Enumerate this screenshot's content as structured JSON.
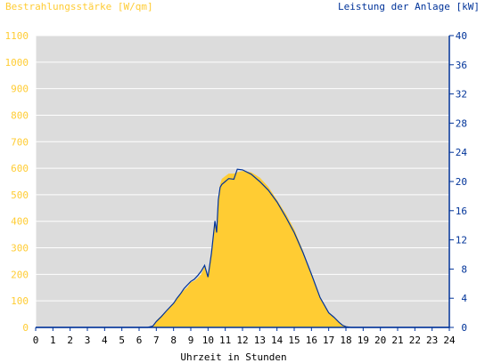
{
  "chart_data": {
    "type": "area",
    "title_left": "Bestrahlungsstärke [W/qm]",
    "title_right": "Leistung der Anlage [kW]",
    "xlabel": "Uhrzeit in Stunden",
    "x_ticks": [
      "0",
      "1",
      "2",
      "3",
      "4",
      "5",
      "6",
      "7",
      "8",
      "9",
      "10",
      "11",
      "12",
      "13",
      "14",
      "15",
      "16",
      "17",
      "18",
      "19",
      "20",
      "21",
      "22",
      "23",
      "24"
    ],
    "xlim": [
      0,
      24
    ],
    "y_left": {
      "ylim": [
        0,
        1100
      ],
      "ticks": [
        "0",
        "100",
        "200",
        "300",
        "400",
        "500",
        "600",
        "700",
        "800",
        "900",
        "1000",
        "1100"
      ]
    },
    "y_right": {
      "ylim": [
        0,
        40
      ],
      "ticks": [
        "0",
        "4",
        "8",
        "12",
        "16",
        "20",
        "24",
        "28",
        "32",
        "36",
        "40"
      ]
    },
    "grid": true,
    "colors": {
      "plot_bg": "#dcdcdc",
      "grid": "#ffffff",
      "irradiance": "#ffcc33",
      "power": "#003399",
      "right_axis": "#003399",
      "left_axis_labels": "#ffcc33"
    },
    "series": [
      {
        "name": "Bestrahlungsstärke [W/qm]",
        "axis": "left",
        "style": "filled-area",
        "x": [
          0,
          6.5,
          6.8,
          7.0,
          7.3,
          7.6,
          8.0,
          8.3,
          8.6,
          8.8,
          9.0,
          9.2,
          9.4,
          9.6,
          9.8,
          10.0,
          10.2,
          10.4,
          10.5,
          10.6,
          10.7,
          10.8,
          11.0,
          11.2,
          11.5,
          11.7,
          12.0,
          12.5,
          13.0,
          13.5,
          14.0,
          14.5,
          15.0,
          15.5,
          16.0,
          16.5,
          17.0,
          17.3,
          17.6,
          17.8,
          18.0,
          18.3,
          24
        ],
        "y": [
          0,
          0,
          5,
          25,
          45,
          60,
          90,
          120,
          140,
          150,
          170,
          175,
          185,
          200,
          230,
          190,
          280,
          400,
          360,
          480,
          540,
          560,
          570,
          580,
          580,
          585,
          590,
          585,
          565,
          530,
          480,
          430,
          370,
          290,
          200,
          110,
          55,
          40,
          20,
          10,
          5,
          0,
          0
        ]
      },
      {
        "name": "Leistung der Anlage [kW]",
        "axis": "right",
        "style": "line",
        "x": [
          0,
          6.5,
          6.8,
          7.0,
          7.3,
          7.6,
          8.0,
          8.2,
          8.4,
          8.6,
          8.8,
          9.0,
          9.2,
          9.4,
          9.6,
          9.8,
          10.0,
          10.2,
          10.4,
          10.5,
          10.6,
          10.7,
          10.8,
          11.0,
          11.2,
          11.5,
          11.7,
          12.0,
          12.5,
          13.0,
          13.5,
          14.0,
          14.5,
          15.0,
          15.5,
          16.0,
          16.5,
          17.0,
          17.3,
          17.6,
          17.8,
          18.0,
          18.3,
          24
        ],
        "y": [
          0,
          0,
          0.2,
          0.8,
          1.5,
          2.3,
          3.3,
          4.0,
          4.6,
          5.3,
          5.8,
          6.3,
          6.6,
          7.1,
          7.7,
          8.5,
          6.9,
          10.2,
          14.6,
          13.0,
          17.5,
          19.2,
          19.6,
          20.0,
          20.4,
          20.3,
          21.7,
          21.6,
          21.0,
          20.0,
          18.8,
          17.2,
          15.2,
          13.0,
          10.3,
          7.3,
          4.1,
          2.0,
          1.4,
          0.7,
          0.3,
          0.1,
          0,
          0
        ]
      }
    ]
  }
}
